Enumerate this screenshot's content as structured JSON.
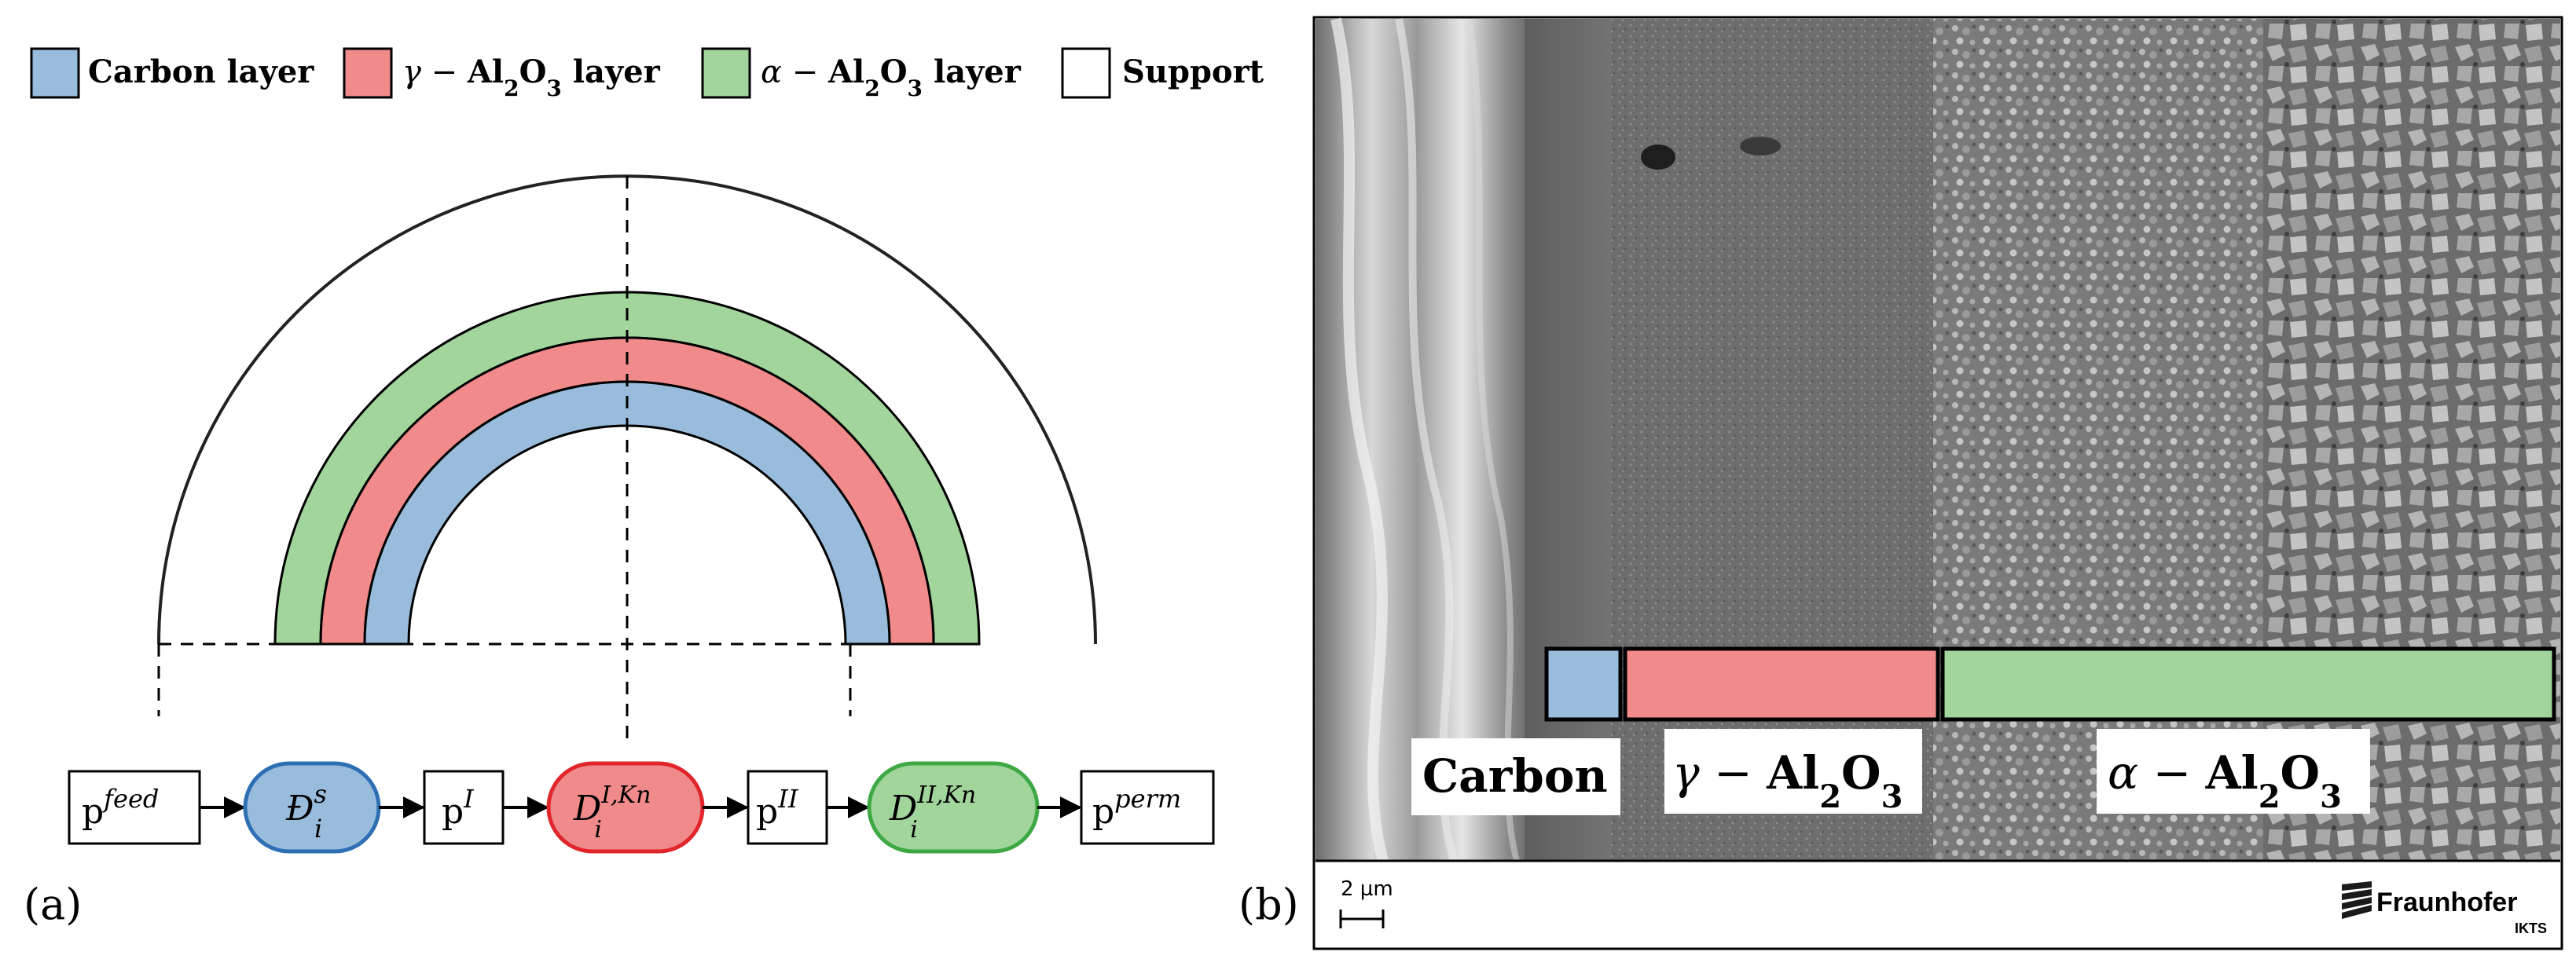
{
  "legend": {
    "carbon": {
      "label": "Carbon layer",
      "color": "#99bcdd"
    },
    "gamma": {
      "prefix": "γ − ",
      "chem": "Al2O3",
      "suffix": " layer",
      "color": "#f18a8a"
    },
    "alpha": {
      "prefix": "α − ",
      "chem": "Al2O3",
      "suffix": " layer",
      "color": "#a2d59c"
    },
    "support": {
      "label": "Support",
      "color": "#ffffff"
    }
  },
  "flow": {
    "p_feed": {
      "base": "p",
      "sup": "feed"
    },
    "d_s": {
      "base": "Đ",
      "sup": "s",
      "sub": "i",
      "fill": "#99bcdd",
      "stroke": "#2d6fb3"
    },
    "p_I": {
      "base": "p",
      "sup": "I"
    },
    "d_I": {
      "base": "D",
      "sup": "I,Kn",
      "sub": "i",
      "fill": "#f18a8a",
      "stroke": "#e0262b"
    },
    "p_II": {
      "base": "p",
      "sup": "II"
    },
    "d_II": {
      "base": "D",
      "sup": "II,Kn",
      "sub": "i",
      "fill": "#a2d59c",
      "stroke": "#3ea845"
    },
    "p_perm": {
      "base": "p",
      "sup": "perm"
    }
  },
  "panel_a_label": "(a)",
  "panel_b_label": "(b)",
  "micrograph": {
    "carbon_label": "Carbon",
    "gamma_label": {
      "prefix": "γ − ",
      "chem": "Al2O3"
    },
    "alpha_label": {
      "prefix": "α − ",
      "chem": "Al2O3"
    },
    "scale_bar": "2 µm",
    "logo_name": "Fraunhofer",
    "logo_sub": "IKTS"
  }
}
